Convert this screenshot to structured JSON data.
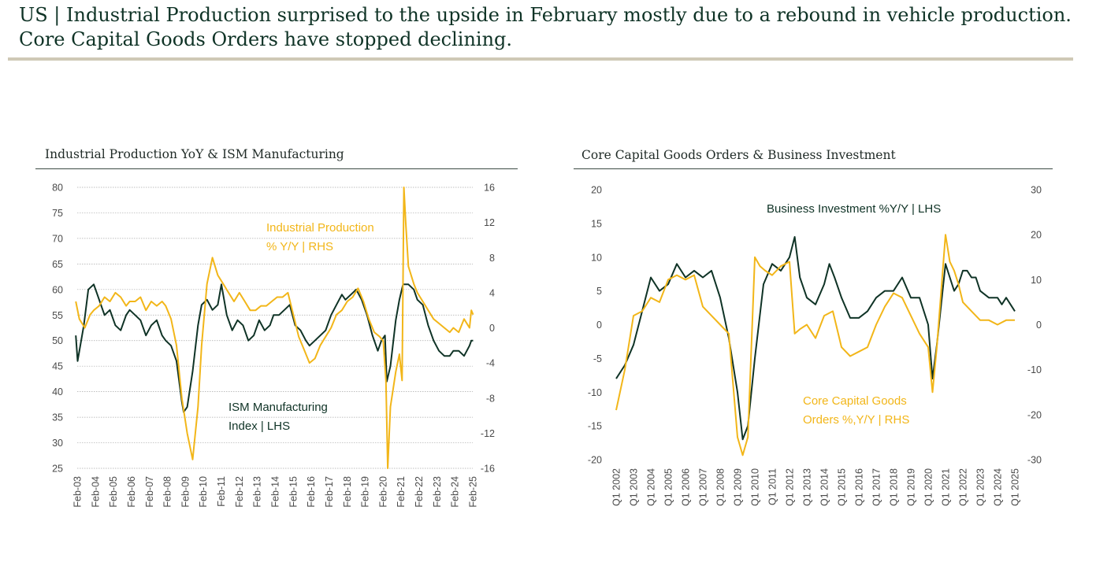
{
  "header": {
    "title_line1": "US | Industrial Production surprised to the upside in February mostly due to a rebound in vehicle production.",
    "title_line2": "Core Capital Goods Orders have stopped declining."
  },
  "colors": {
    "dark": "#0f3326",
    "gold": "#f2b619",
    "grid": "#a9a9a9",
    "rule": "#cfc9b6"
  },
  "chart_data": [
    {
      "type": "line",
      "title": "Industrial Production YoY & ISM Manufacturing",
      "x_ticks": [
        "Feb-03",
        "Feb-04",
        "Feb-05",
        "Feb-06",
        "Feb-07",
        "Feb-08",
        "Feb-09",
        "Feb-10",
        "Feb-11",
        "Feb-12",
        "Feb-13",
        "Feb-14",
        "Feb-15",
        "Feb-16",
        "Feb-17",
        "Feb-18",
        "Feb-19",
        "Feb-20",
        "Feb-21",
        "Feb-22",
        "Feb-23",
        "Feb-24",
        "Feb-25"
      ],
      "y_left": {
        "min": 25,
        "max": 80,
        "ticks": [
          "80",
          "75",
          "70",
          "65",
          "60",
          "55",
          "50",
          "45",
          "40",
          "35",
          "30",
          "25"
        ]
      },
      "y_right": {
        "min": -16,
        "max": 16,
        "ticks": [
          "16",
          "12",
          "8",
          "4",
          "0",
          "-4",
          "-8",
          "-12",
          "-16"
        ]
      },
      "grid": true,
      "series": [
        {
          "name": "ISM Manufacturing Index | LHS",
          "axis": "left",
          "color": "dark",
          "label_line1": "ISM Manufacturing",
          "label_line2": "Index | LHS",
          "x": [
            2003.0,
            2003.1,
            2003.25,
            2003.45,
            2003.7,
            2004.0,
            2004.2,
            2004.4,
            2004.6,
            2004.9,
            2005.2,
            2005.5,
            2005.8,
            2006.0,
            2006.3,
            2006.6,
            2006.9,
            2007.2,
            2007.5,
            2007.8,
            2008.0,
            2008.3,
            2008.6,
            2008.9,
            2009.0,
            2009.2,
            2009.5,
            2009.8,
            2010.0,
            2010.3,
            2010.6,
            2010.9,
            2011.1,
            2011.4,
            2011.7,
            2012.0,
            2012.3,
            2012.6,
            2012.9,
            2013.2,
            2013.5,
            2013.8,
            2014.0,
            2014.3,
            2014.6,
            2014.9,
            2015.2,
            2015.5,
            2015.8,
            2016.0,
            2016.3,
            2016.6,
            2016.9,
            2017.2,
            2017.5,
            2017.8,
            2018.0,
            2018.3,
            2018.6,
            2018.9,
            2019.2,
            2019.5,
            2019.8,
            2020.0,
            2020.2,
            2020.3,
            2020.5,
            2020.8,
            2021.0,
            2021.2,
            2021.5,
            2021.8,
            2022.0,
            2022.3,
            2022.6,
            2022.9,
            2023.2,
            2023.5,
            2023.8,
            2024.0,
            2024.3,
            2024.6,
            2024.9,
            2025.0,
            2025.1
          ],
          "values": [
            51,
            46,
            49,
            53,
            60,
            61,
            59,
            57,
            55,
            56,
            53,
            52,
            55,
            56,
            55,
            54,
            51,
            53,
            54,
            51,
            50,
            49,
            46,
            38,
            36,
            37,
            44,
            53,
            57,
            58,
            56,
            57,
            61,
            55,
            52,
            54,
            53,
            50,
            51,
            54,
            52,
            53,
            55,
            55,
            56,
            57,
            53,
            52,
            50,
            49,
            50,
            51,
            52,
            55,
            57,
            59,
            58,
            59,
            60,
            58,
            55,
            51,
            48,
            50,
            51,
            42,
            45,
            54,
            58,
            61,
            61,
            60,
            58,
            57,
            53,
            50,
            48,
            47,
            47,
            48,
            48,
            47,
            49,
            50,
            50
          ]
        },
        {
          "name": "Industrial Production % Y/Y | RHS",
          "axis": "right",
          "color": "gold",
          "label_line1": "Industrial Production",
          "label_line2": "% Y/Y | RHS",
          "x": [
            2003.0,
            2003.2,
            2003.5,
            2003.8,
            2004.0,
            2004.3,
            2004.6,
            2004.9,
            2005.2,
            2005.5,
            2005.8,
            2006.0,
            2006.3,
            2006.6,
            2006.9,
            2007.2,
            2007.5,
            2007.8,
            2008.0,
            2008.3,
            2008.6,
            2008.9,
            2009.2,
            2009.5,
            2009.8,
            2010.0,
            2010.3,
            2010.6,
            2010.9,
            2011.2,
            2011.5,
            2011.8,
            2012.1,
            2012.4,
            2012.7,
            2013.0,
            2013.3,
            2013.6,
            2013.9,
            2014.2,
            2014.5,
            2014.8,
            2015.1,
            2015.4,
            2015.7,
            2016.0,
            2016.3,
            2016.6,
            2016.9,
            2017.2,
            2017.5,
            2017.8,
            2018.1,
            2018.4,
            2018.7,
            2019.0,
            2019.3,
            2019.6,
            2019.9,
            2020.1,
            2020.25,
            2020.35,
            2020.5,
            2020.8,
            2021.0,
            2021.15,
            2021.25,
            2021.35,
            2021.5,
            2021.8,
            2022.0,
            2022.3,
            2022.6,
            2022.9,
            2023.2,
            2023.5,
            2023.8,
            2024.0,
            2024.3,
            2024.6,
            2024.9,
            2025.0,
            2025.1
          ],
          "values": [
            3,
            1,
            0,
            1.5,
            2,
            2.5,
            3.5,
            3,
            4,
            3.5,
            2.5,
            3,
            3,
            3.5,
            2,
            3,
            2.5,
            3,
            2.5,
            1,
            -2,
            -8,
            -12,
            -15,
            -9,
            -2,
            5,
            8,
            6,
            5,
            4,
            3,
            4,
            3,
            2,
            2,
            2.5,
            2.5,
            3,
            3.5,
            3.5,
            4,
            1.5,
            -1,
            -2.5,
            -4,
            -3.5,
            -2,
            -1,
            0,
            1.5,
            2,
            3,
            3.5,
            4.5,
            3,
            1,
            -0.5,
            -1,
            -1.5,
            -6,
            -16,
            -9,
            -5,
            -3,
            -6,
            16,
            12,
            7,
            5,
            4,
            3,
            2,
            1,
            0.5,
            0,
            -0.5,
            0,
            -0.5,
            1,
            0,
            2,
            1.5
          ]
        }
      ]
    },
    {
      "type": "line",
      "title": "Core Capital Goods Orders & Business Investment",
      "x_ticks": [
        "Q1 2002",
        "Q1 2003",
        "Q1 2004",
        "Q1 2005",
        "Q1 2006",
        "Q1 2007",
        "Q1 2008",
        "Q1 2009",
        "Q1 2010",
        "Q1 2011",
        "Q1 2012",
        "Q1 2013",
        "Q1 2014",
        "Q1 2015",
        "Q1 2016",
        "Q1 2017",
        "Q1 2018",
        "Q1 2019",
        "Q1 2020",
        "Q1 2021",
        "Q1 2022",
        "Q1 2023",
        "Q1 2024",
        "Q1 2025"
      ],
      "y_left": {
        "min": -20,
        "max": 20,
        "ticks": [
          "20",
          "15",
          "10",
          "5",
          "0",
          "-5",
          "-10",
          "-15",
          "-20"
        ]
      },
      "y_right": {
        "min": -30,
        "max": 30,
        "ticks": [
          "30",
          "20",
          "10",
          "0",
          "-10",
          "-20",
          "-30"
        ]
      },
      "grid": false,
      "series": [
        {
          "name": "Business Investment %Y/Y | LHS",
          "axis": "left",
          "color": "dark",
          "label_line1": "Business Investment %Y/Y | LHS",
          "x": [
            2002.0,
            2002.5,
            2003.0,
            2003.5,
            2004.0,
            2004.5,
            2005.0,
            2005.5,
            2006.0,
            2006.5,
            2007.0,
            2007.5,
            2008.0,
            2008.5,
            2009.0,
            2009.3,
            2009.6,
            2010.0,
            2010.5,
            2011.0,
            2011.5,
            2012.0,
            2012.3,
            2012.6,
            2013.0,
            2013.5,
            2014.0,
            2014.3,
            2014.6,
            2015.0,
            2015.5,
            2016.0,
            2016.5,
            2017.0,
            2017.5,
            2018.0,
            2018.5,
            2019.0,
            2019.5,
            2020.0,
            2020.25,
            2020.5,
            2021.0,
            2021.25,
            2021.5,
            2021.75,
            2022.0,
            2022.25,
            2022.5,
            2022.75,
            2023.0,
            2023.5,
            2024.0,
            2024.25,
            2024.5,
            2024.75,
            2025.0
          ],
          "values": [
            -8,
            -6,
            -3,
            2,
            7,
            5,
            6,
            9,
            7,
            8,
            7,
            8,
            4,
            -2,
            -10,
            -17,
            -15,
            -5,
            6,
            9,
            8,
            10,
            13,
            7,
            4,
            3,
            6,
            9,
            7,
            4,
            1,
            1,
            2,
            4,
            5,
            5,
            7,
            4,
            4,
            0,
            -8,
            -3,
            9,
            7,
            5,
            6,
            8,
            8,
            7,
            7,
            5,
            4,
            4,
            3,
            4,
            3,
            2
          ]
        },
        {
          "name": "Core Capital Goods Orders %,Y/Y | RHS",
          "axis": "right",
          "color": "gold",
          "label_line1": "Core Capital Goods",
          "label_line2": "Orders %,Y/Y | RHS",
          "x": [
            2002.0,
            2002.5,
            2003.0,
            2003.5,
            2004.0,
            2004.5,
            2005.0,
            2005.5,
            2006.0,
            2006.5,
            2007.0,
            2007.5,
            2008.0,
            2008.5,
            2009.0,
            2009.3,
            2009.6,
            2010.0,
            2010.3,
            2010.6,
            2011.0,
            2011.5,
            2012.0,
            2012.3,
            2012.6,
            2013.0,
            2013.5,
            2014.0,
            2014.5,
            2015.0,
            2015.5,
            2016.0,
            2016.5,
            2017.0,
            2017.5,
            2018.0,
            2018.5,
            2019.0,
            2019.5,
            2020.0,
            2020.25,
            2020.5,
            2021.0,
            2021.25,
            2021.5,
            2021.75,
            2022.0,
            2022.5,
            2023.0,
            2023.5,
            2024.0,
            2024.5,
            2025.0
          ],
          "values": [
            -19,
            -10,
            2,
            3,
            6,
            5,
            10,
            11,
            10,
            11,
            4,
            2,
            0,
            -2,
            -25,
            -29,
            -25,
            15,
            13,
            12,
            11,
            13,
            14,
            -2,
            -1,
            0,
            -3,
            2,
            3,
            -5,
            -7,
            -6,
            -5,
            0,
            4,
            7,
            6,
            2,
            -2,
            -5,
            -15,
            -5,
            20,
            14,
            12,
            9,
            5,
            3,
            1,
            1,
            0,
            1,
            1
          ]
        }
      ]
    }
  ]
}
